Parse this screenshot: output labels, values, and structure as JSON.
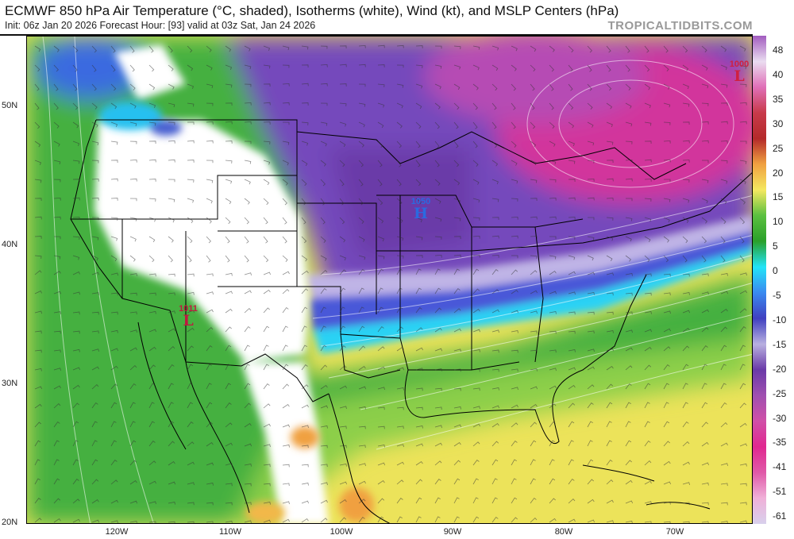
{
  "header": {
    "title": "ECMWF 850 hPa Air Temperature (°C, shaded), Isotherms (white), Wind (kt), and MSLP Centers (hPa)",
    "subtitle": "Init: 06z Jan 20 2026   Forecast Hour: [93]   valid at 03z Sat, Jan 24 2026",
    "site": "TROPICALTIDBITS.COM"
  },
  "axes": {
    "lat_labels": [
      "50N",
      "40N",
      "30N",
      "20N"
    ],
    "lon_labels": [
      "120W",
      "110W",
      "100W",
      "90W",
      "80W",
      "70W"
    ]
  },
  "colorbar": {
    "labels": [
      "48",
      "40",
      "35",
      "30",
      "25",
      "20",
      "15",
      "10",
      "5",
      "0",
      "-5",
      "-10",
      "-15",
      "-20",
      "-25",
      "-30",
      "-35",
      "-41",
      "-51",
      "-61"
    ],
    "colors": [
      "#a25cbf",
      "#eadcf0",
      "#e070b8",
      "#c83a4a",
      "#b42a2a",
      "#f0a040",
      "#f4e860",
      "#5cc040",
      "#2aa02a",
      "#22e4f8",
      "#3a8af0",
      "#4040c0",
      "#b8b0e0",
      "#6a3aa8",
      "#a050b0",
      "#d050a8",
      "#e02890",
      "#e05aa8",
      "#f0b0d8",
      "#d8d0ec"
    ]
  },
  "pressure_centers": [
    {
      "type": "L",
      "value": "1000",
      "color": "#d02040"
    },
    {
      "type": "L",
      "value": "1011",
      "color": "#c01840"
    },
    {
      "type": "H",
      "value": "1050",
      "color": "#2a6ae0"
    }
  ]
}
